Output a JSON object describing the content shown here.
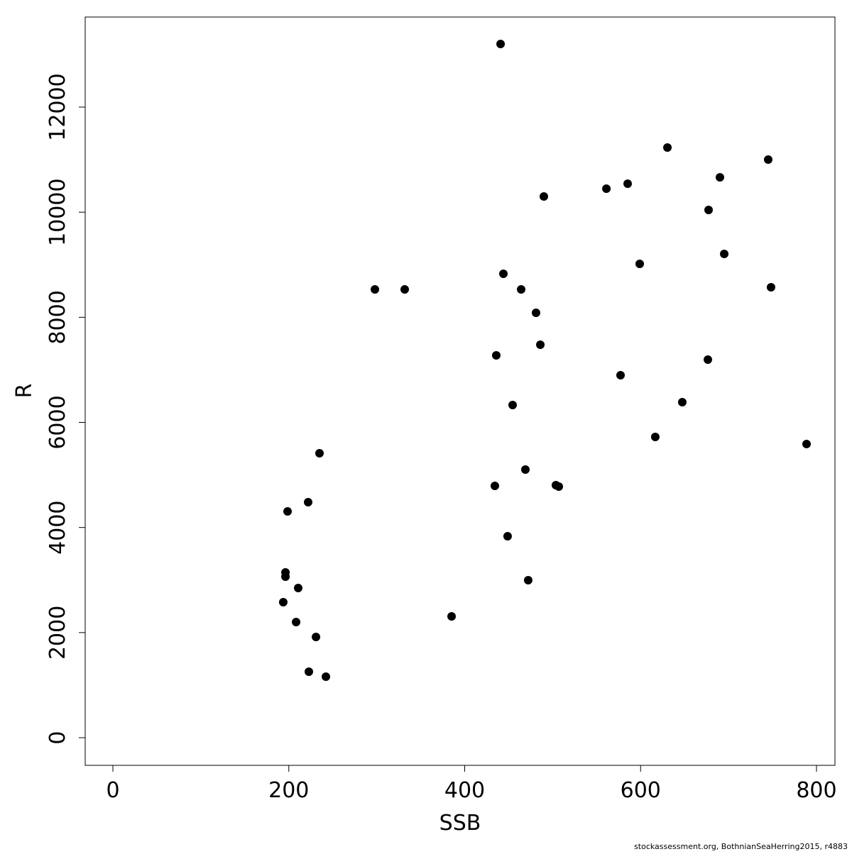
{
  "chart_data": {
    "type": "scatter",
    "x_label": "SSB",
    "y_label": "R",
    "footer": "stockassessment.org, BothnianSeaHerring2015, r4883",
    "color": "#000000",
    "x": [
      440.8,
      630.5,
      745.1,
      690.2,
      585.3,
      561.1,
      490.0,
      677.3,
      695.1,
      599.0,
      444.0,
      748.3,
      297.9,
      331.8,
      464.2,
      481.1,
      486.0,
      435.9,
      676.5,
      577.2,
      454.5,
      647.4,
      616.7,
      788.7,
      234.9,
      469.0,
      434.3,
      503.7,
      507.0,
      222.0,
      198.6,
      448.8,
      196.2,
      196.2,
      210.7,
      193.7,
      472.2,
      385.1,
      208.3,
      230.9,
      222.8,
      242.2
    ],
    "values": [
      13201,
      11230,
      11001,
      10664,
      10542,
      10448,
      10299,
      10043,
      9206,
      9017,
      8828,
      8571,
      8531,
      8531,
      8531,
      8086,
      7478,
      7276,
      7195,
      6898,
      6331,
      6385,
      5723,
      5588,
      5413,
      5102,
      4792,
      4805,
      4778,
      4481,
      4306,
      3834,
      3145,
      3064,
      2848,
      2578,
      2997,
      2308,
      2200,
      1917,
      1255,
      1161
    ],
    "xlim": [
      -31.5,
      821
    ],
    "ylim": [
      -526,
      13714
    ],
    "xticks": [
      0,
      200,
      400,
      600,
      800
    ],
    "yticks": [
      0,
      2000,
      4000,
      6000,
      8000,
      10000,
      12000
    ]
  }
}
